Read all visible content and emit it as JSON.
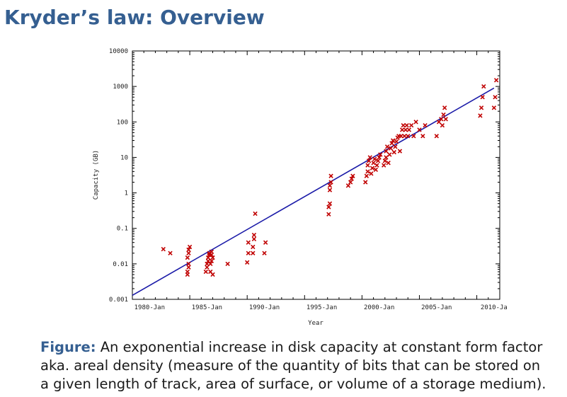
{
  "slide": {
    "title": "Kryder’s law: Overview"
  },
  "caption": {
    "label": "Figure:",
    "line1": "An exponential increase in disk capacity at constant form factor",
    "line2": "aka. areal density (measure of the quantity of bits that can be stored on",
    "line3": "a given length of track, area of surface, or volume of a storage medium)."
  },
  "colors": {
    "title": "#355f91",
    "points": "#c00000",
    "trend": "#1a1aa8"
  },
  "chart_data": {
    "type": "scatter",
    "title": "",
    "xlabel": "Year",
    "ylabel": "Capacity (GB)",
    "x_scale": "linear",
    "y_scale": "log",
    "xlim": [
      1978,
      2010
    ],
    "ylim": [
      0.001,
      10000
    ],
    "x_ticks": [
      1978,
      1983,
      1988,
      1993,
      1998,
      2003,
      2008,
      2013
    ],
    "x_tick_labels": [
      "1980-Jan",
      "1985-Jan",
      "1990-Jan",
      "1995-Jan",
      "2000-Jan",
      "2005-Jan",
      "2010-Ja"
    ],
    "y_ticks": [
      0.001,
      0.01,
      0.1,
      1,
      10,
      100,
      1000,
      10000
    ],
    "y_tick_labels": [
      "0.001",
      "0.01",
      "0.1",
      "1",
      "10",
      "100",
      "1000",
      "10000"
    ],
    "grid": false,
    "legend": "none",
    "series": [
      {
        "kind": "scatter",
        "points": [
          [
            1980.7,
            0.026
          ],
          [
            1981.3,
            0.02
          ],
          [
            1982.8,
            0.005
          ],
          [
            1982.8,
            0.006
          ],
          [
            1982.9,
            0.008
          ],
          [
            1982.9,
            0.01
          ],
          [
            1982.8,
            0.015
          ],
          [
            1982.9,
            0.02
          ],
          [
            1982.9,
            0.025
          ],
          [
            1983.0,
            0.03
          ],
          [
            1984.4,
            0.006
          ],
          [
            1984.5,
            0.008
          ],
          [
            1984.5,
            0.01
          ],
          [
            1984.6,
            0.012
          ],
          [
            1984.6,
            0.015
          ],
          [
            1984.7,
            0.018
          ],
          [
            1984.7,
            0.02
          ],
          [
            1984.8,
            0.006
          ],
          [
            1984.8,
            0.01
          ],
          [
            1984.9,
            0.012
          ],
          [
            1984.9,
            0.018
          ],
          [
            1984.9,
            0.022
          ],
          [
            1985.0,
            0.005
          ],
          [
            1985.0,
            0.015
          ],
          [
            1986.3,
            0.01
          ],
          [
            1988.0,
            0.011
          ],
          [
            1988.1,
            0.02
          ],
          [
            1988.1,
            0.04
          ],
          [
            1988.5,
            0.02
          ],
          [
            1988.5,
            0.03
          ],
          [
            1988.6,
            0.05
          ],
          [
            1988.6,
            0.065
          ],
          [
            1988.7,
            0.26
          ],
          [
            1989.5,
            0.02
          ],
          [
            1989.6,
            0.04
          ],
          [
            1995.1,
            0.25
          ],
          [
            1995.1,
            0.4
          ],
          [
            1995.2,
            0.5
          ],
          [
            1995.2,
            1.2
          ],
          [
            1995.2,
            1.6
          ],
          [
            1995.3,
            2.0
          ],
          [
            1995.3,
            3.0
          ],
          [
            1996.8,
            1.6
          ],
          [
            1997.0,
            2.0
          ],
          [
            1997.1,
            2.5
          ],
          [
            1997.2,
            3.0
          ],
          [
            1998.3,
            2.0
          ],
          [
            1998.4,
            3.0
          ],
          [
            1998.5,
            4.0
          ],
          [
            1998.5,
            6.0
          ],
          [
            1998.6,
            8.0
          ],
          [
            1998.7,
            10.0
          ],
          [
            1998.8,
            3.5
          ],
          [
            1998.9,
            5.0
          ],
          [
            1999.0,
            7.0
          ],
          [
            1999.1,
            9.0
          ],
          [
            1999.2,
            4.5
          ],
          [
            1999.3,
            6.0
          ],
          [
            1999.4,
            8.0
          ],
          [
            1999.5,
            10.0
          ],
          [
            1999.6,
            12.0
          ],
          [
            1999.9,
            6.0
          ],
          [
            2000.0,
            8.0
          ],
          [
            2000.1,
            10.0
          ],
          [
            2000.1,
            15.0
          ],
          [
            2000.2,
            20.0
          ],
          [
            2000.3,
            7.0
          ],
          [
            2000.4,
            12.0
          ],
          [
            2000.5,
            18.0
          ],
          [
            2000.6,
            25.0
          ],
          [
            2000.7,
            30.0
          ],
          [
            2000.8,
            14.0
          ],
          [
            2000.9,
            20.0
          ],
          [
            2001.0,
            28.0
          ],
          [
            2001.1,
            36.0
          ],
          [
            2001.2,
            40.0
          ],
          [
            2001.3,
            15.0
          ],
          [
            2001.4,
            40.0
          ],
          [
            2001.5,
            60.0
          ],
          [
            2001.6,
            80.0
          ],
          [
            2001.7,
            40.0
          ],
          [
            2001.8,
            60.0
          ],
          [
            2001.9,
            80.0
          ],
          [
            2002.0,
            40.0
          ],
          [
            2002.1,
            60.0
          ],
          [
            2002.3,
            80.0
          ],
          [
            2002.5,
            40.0
          ],
          [
            2002.7,
            100.0
          ],
          [
            2003.0,
            60.0
          ],
          [
            2003.3,
            40.0
          ],
          [
            2003.5,
            80.0
          ],
          [
            2004.5,
            40.0
          ],
          [
            2004.7,
            100.0
          ],
          [
            2004.9,
            120.0
          ],
          [
            2005.0,
            80.0
          ],
          [
            2005.1,
            160.0
          ],
          [
            2005.2,
            250.0
          ],
          [
            2005.3,
            120.0
          ],
          [
            2008.3,
            150.0
          ],
          [
            2008.4,
            250.0
          ],
          [
            2008.5,
            500.0
          ],
          [
            2008.6,
            1000.0
          ],
          [
            2009.5,
            250.0
          ],
          [
            2009.6,
            500.0
          ],
          [
            2009.7,
            1500.0
          ]
        ]
      },
      {
        "kind": "trendline",
        "x": [
          1978,
          2009.5
        ],
        "y": [
          0.0013,
          900
        ]
      }
    ]
  }
}
